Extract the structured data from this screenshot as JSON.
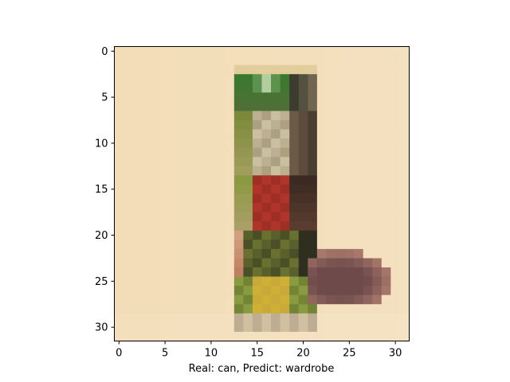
{
  "figure": {
    "xlabel": "Real: can, Predict: wardrobe",
    "x_ticks": [
      "0",
      "5",
      "10",
      "15",
      "20",
      "25",
      "30"
    ],
    "y_ticks": [
      "0",
      "5",
      "10",
      "15",
      "20",
      "25",
      "30"
    ],
    "image_size": [
      32,
      32
    ],
    "image_content": "pixelated photo of a drink can with green top and red/yellow label on a beige background, brown object at bottom right"
  },
  "colors": {
    "background": "#f3ddb8",
    "can_green": "#3a7a2e",
    "can_red": "#b0342a",
    "can_yellow": "#c9a93a",
    "brown_object": "#6e4a4a"
  }
}
